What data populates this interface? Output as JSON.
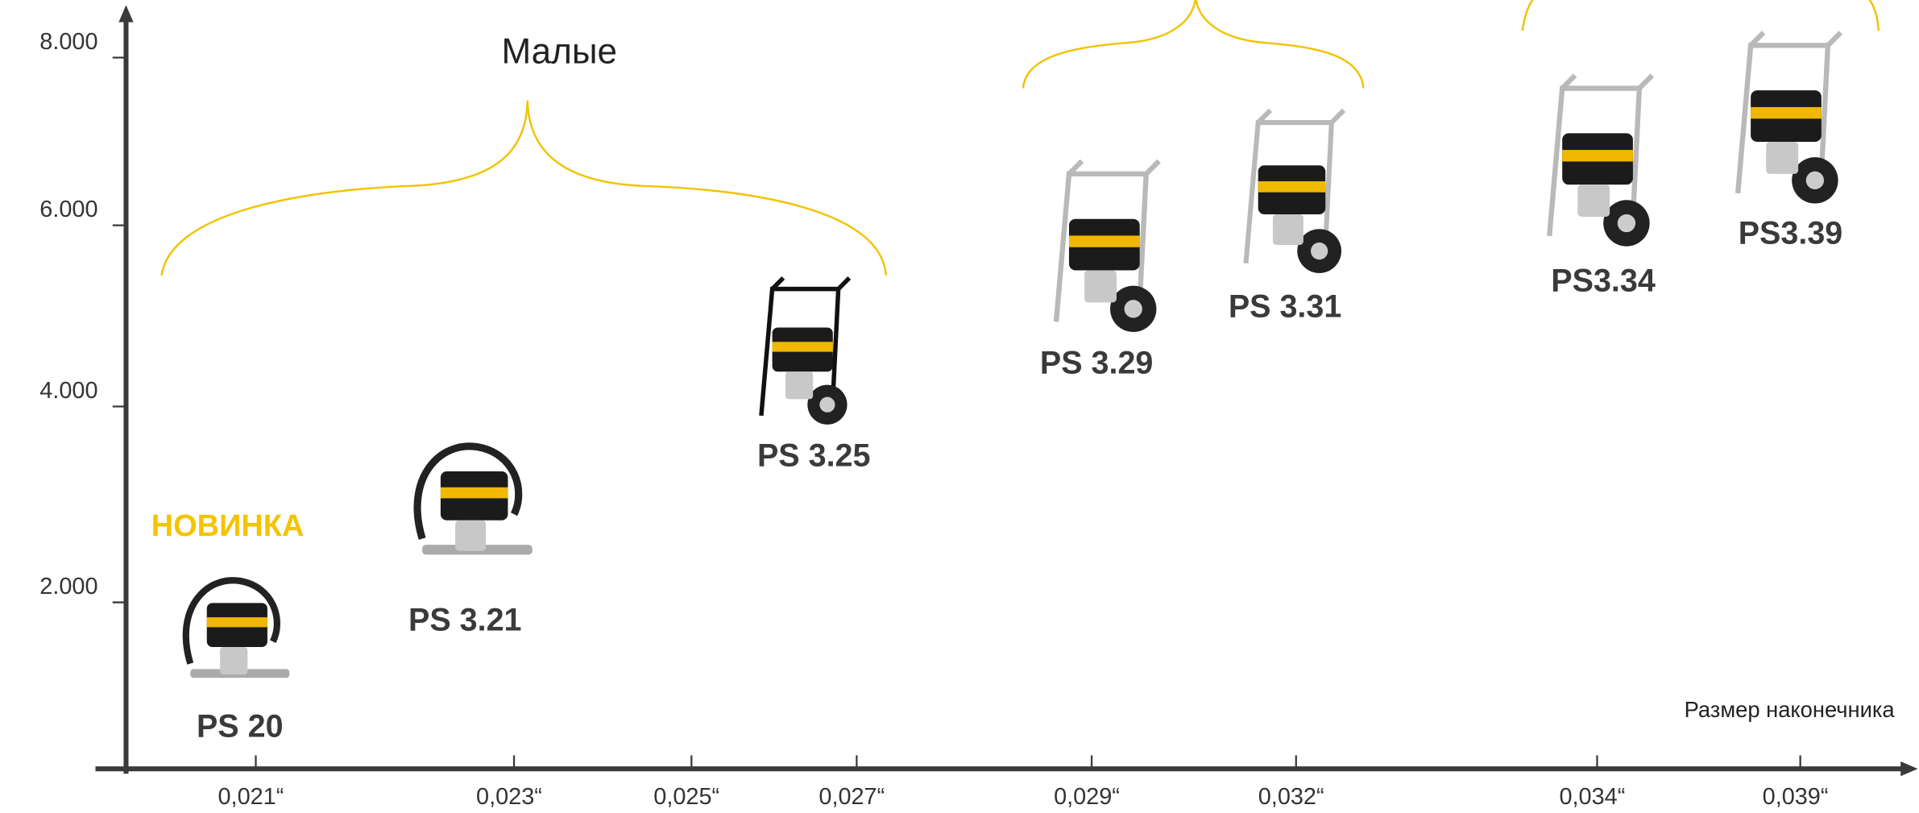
{
  "y_axis": {
    "ticks": [
      "8.000",
      "6.000",
      "4.000",
      "2.000"
    ]
  },
  "x_axis": {
    "title": "Размер наконечника",
    "ticks": [
      "0,021“",
      "0,023“",
      "0,025“",
      "0,027“",
      "0,029“",
      "0,032“",
      "0,034“",
      "0,039“"
    ]
  },
  "groups": [
    {
      "label": "Малые"
    }
  ],
  "badge": "НОВИНКА",
  "products": [
    "PS 20",
    "PS 3.21",
    "PS 3.25",
    "PS 3.29",
    "PS 3.31",
    "PS3.34",
    "PS3.39"
  ]
}
